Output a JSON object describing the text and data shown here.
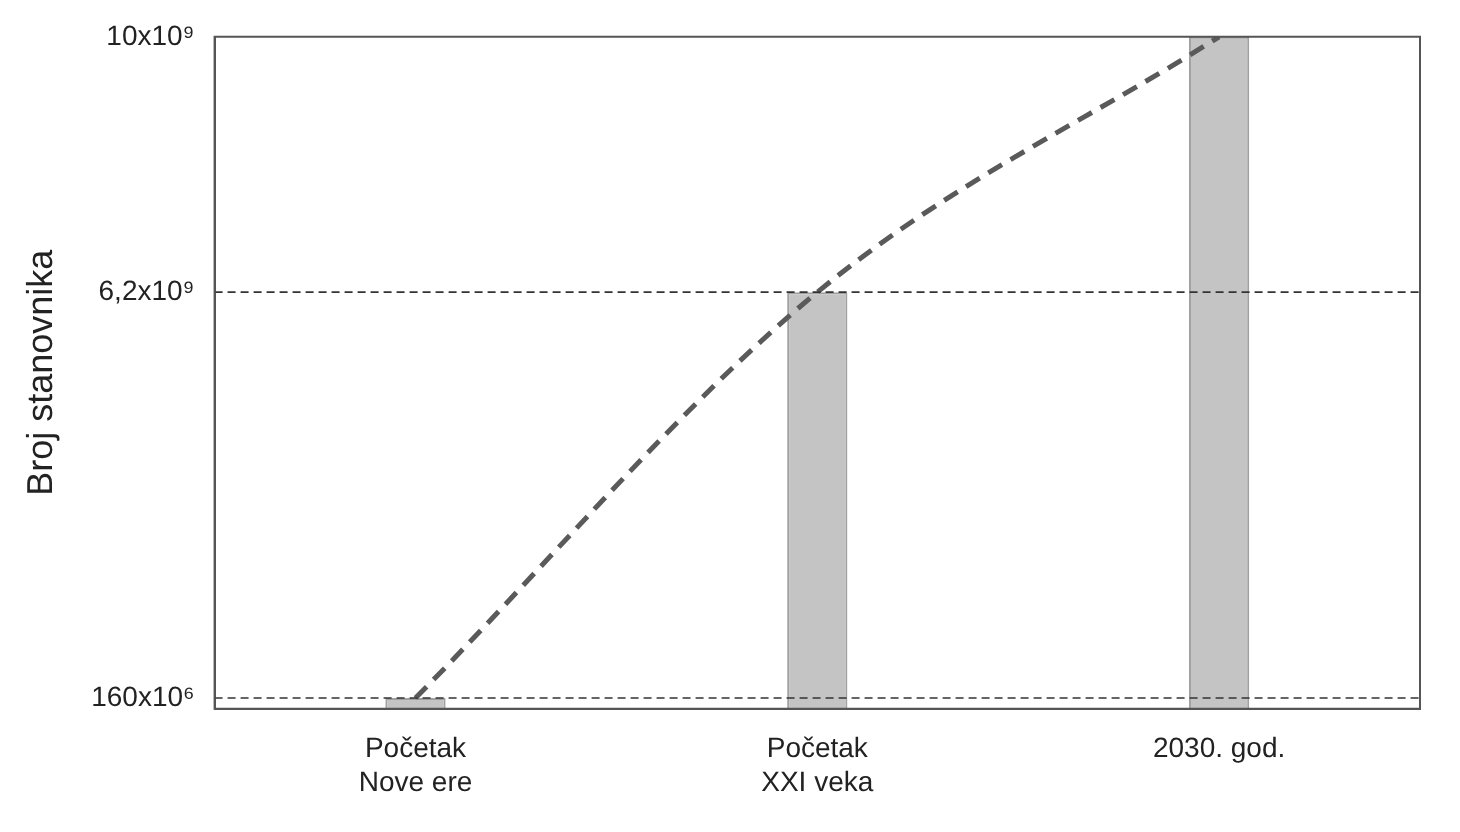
{
  "chart_data": {
    "type": "bar",
    "ylabel": "Broj stanovnika",
    "categories": [
      "Početak Nove ere",
      "Početak XXI veka",
      "2030. god."
    ],
    "series": [
      {
        "color": "#c4c4c4",
        "values": [
          160000000,
          6200000000,
          10000000000
        ]
      },
      {
        "type": "line",
        "color": "#5a5a5a",
        "line_style": "dashed",
        "values": [
          160000000,
          6200000000,
          10000000000
        ]
      }
    ],
    "ylim": [
      0,
      10000000000
    ],
    "yticks": [
      {
        "value": 160000000,
        "label": "160x10⁶"
      },
      {
        "value": 6200000000,
        "label": "6,2x10⁹"
      },
      {
        "value": 10000000000,
        "label": "10x10⁹"
      }
    ],
    "ref_lines": [
      {
        "axis": "y",
        "value": 160000000,
        "color": "#333333",
        "line_style": "dashed"
      },
      {
        "axis": "y",
        "value": 6200000000,
        "color": "#333333",
        "line_style": "dashed"
      }
    ],
    "grid": false,
    "legend": false
  }
}
